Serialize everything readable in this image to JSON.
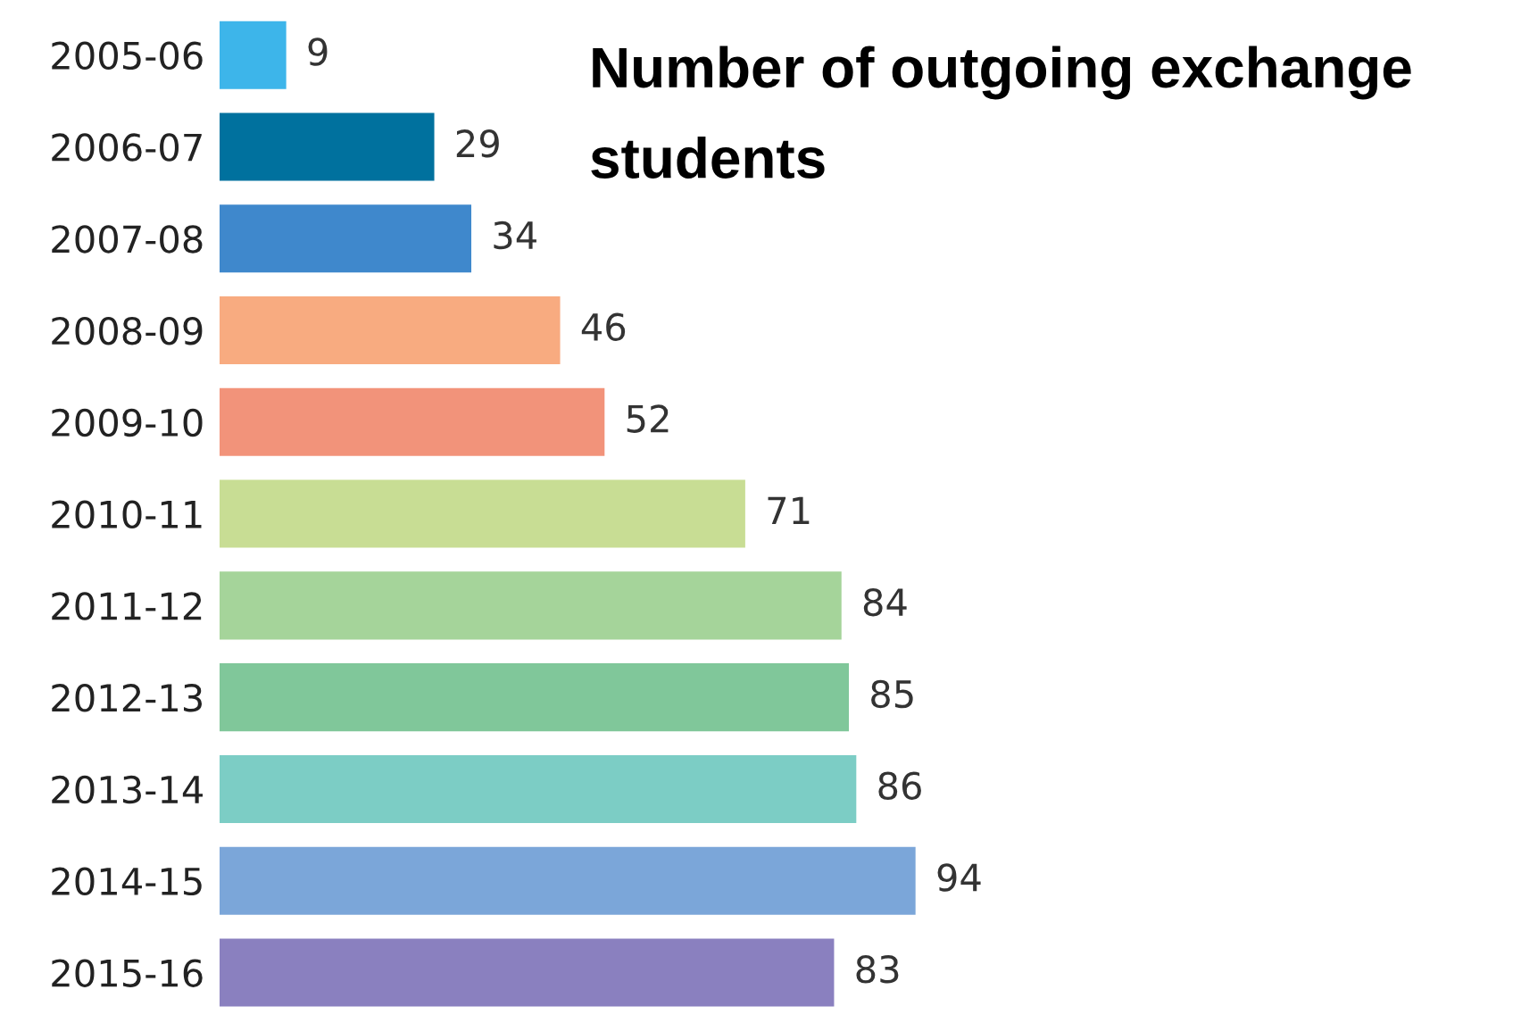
{
  "chart_data": {
    "type": "bar",
    "orientation": "horizontal",
    "title": "Number of outgoing exchange students",
    "categories": [
      "2005-06",
      "2006-07",
      "2007-08",
      "2008-09",
      "2009-10",
      "2010-11",
      "2011-12",
      "2012-13",
      "2013-14",
      "2014-15",
      "2015-16"
    ],
    "values": [
      9,
      29,
      34,
      46,
      52,
      71,
      84,
      85,
      86,
      94,
      83
    ],
    "colors": [
      "#3db5ea",
      "#00719e",
      "#3f88cc",
      "#f8ab80",
      "#f2937a",
      "#c8dd94",
      "#a5d49a",
      "#80c79a",
      "#7ccdc5",
      "#7ba6d9",
      "#8a80bf"
    ],
    "data_labels": true,
    "grid": false,
    "legend": false
  }
}
